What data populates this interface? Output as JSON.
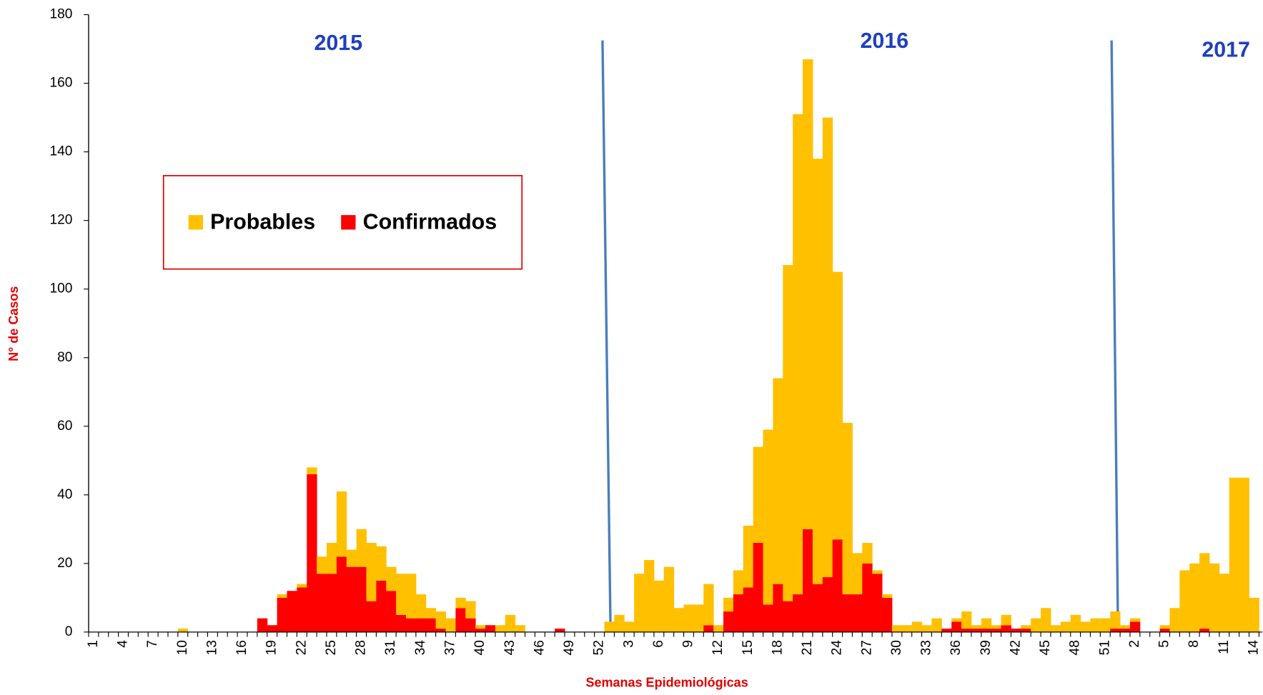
{
  "chart_data": {
    "type": "stacked-bar",
    "x_label": "Semanas Epidemiológicas",
    "y_label": "N° de Casos",
    "annotations": [
      "2015",
      "2016",
      "2017"
    ],
    "categories": [
      "1",
      null,
      null,
      "4",
      null,
      null,
      "7",
      null,
      null,
      "10",
      null,
      null,
      "13",
      null,
      null,
      "16",
      null,
      null,
      "19",
      null,
      null,
      "22",
      null,
      null,
      "25",
      null,
      null,
      "28",
      null,
      null,
      "31",
      null,
      null,
      "34",
      null,
      null,
      "37",
      null,
      null,
      "40",
      null,
      null,
      "43",
      null,
      null,
      "46",
      null,
      null,
      "49",
      null,
      null,
      "52",
      null,
      null,
      "3",
      null,
      null,
      "6",
      null,
      null,
      "9",
      null,
      null,
      "12",
      null,
      null,
      "15",
      null,
      null,
      "18",
      null,
      null,
      "21",
      null,
      null,
      "24",
      null,
      null,
      "27",
      null,
      null,
      "30",
      null,
      null,
      "33",
      null,
      null,
      "36",
      null,
      null,
      "39",
      null,
      null,
      "42",
      null,
      null,
      "45",
      null,
      null,
      "48",
      null,
      null,
      "51",
      null,
      null,
      "2",
      null,
      null,
      "5",
      null,
      null,
      "8",
      null,
      null,
      "11",
      null,
      null,
      "14"
    ],
    "series": [
      {
        "name": "Probables",
        "color": "#ffc000",
        "values": [
          0,
          0,
          0,
          0,
          0,
          0,
          0,
          0,
          0,
          1,
          0,
          0,
          0,
          0,
          0,
          0,
          0,
          0,
          0,
          1,
          0,
          1,
          2,
          5,
          9,
          19,
          5,
          11,
          17,
          10,
          7,
          12,
          13,
          7,
          3,
          5,
          4,
          3,
          5,
          1,
          0,
          2,
          5,
          2,
          0,
          0,
          0,
          0,
          0,
          0,
          0,
          0,
          3,
          5,
          3,
          17,
          21,
          15,
          19,
          7,
          8,
          8,
          12,
          2,
          4,
          7,
          18,
          28,
          51,
          60,
          98,
          140,
          137,
          124,
          134,
          78,
          50,
          12,
          6,
          1,
          1,
          2,
          2,
          3,
          2,
          4,
          0,
          1,
          5,
          1,
          3,
          1,
          3,
          0,
          1,
          4,
          7,
          2,
          3,
          5,
          3,
          4,
          4,
          5,
          1,
          1,
          0,
          0,
          1,
          7,
          18,
          20,
          22,
          20,
          17,
          45,
          45,
          10
        ]
      },
      {
        "name": "Confirmados",
        "color": "#ff0000",
        "values": [
          0,
          0,
          0,
          0,
          0,
          0,
          0,
          0,
          0,
          0,
          0,
          0,
          0,
          0,
          0,
          0,
          0,
          4,
          2,
          10,
          12,
          13,
          46,
          17,
          17,
          22,
          19,
          19,
          9,
          15,
          12,
          5,
          4,
          4,
          4,
          1,
          0,
          7,
          4,
          1,
          2,
          0,
          0,
          0,
          0,
          0,
          0,
          1,
          0,
          0,
          0,
          0,
          0,
          0,
          0,
          0,
          0,
          0,
          0,
          0,
          0,
          0,
          2,
          0,
          6,
          11,
          13,
          26,
          8,
          14,
          9,
          11,
          30,
          14,
          16,
          27,
          11,
          11,
          20,
          17,
          10,
          0,
          0,
          0,
          0,
          0,
          1,
          3,
          1,
          1,
          1,
          1,
          2,
          1,
          1,
          0,
          0,
          0,
          0,
          0,
          0,
          0,
          0,
          1,
          1,
          3,
          0,
          0,
          1,
          0,
          0,
          0,
          1,
          0,
          0,
          0,
          0,
          0
        ]
      }
    ],
    "ylim": [
      0,
      180
    ],
    "yticks": [
      0,
      20,
      40,
      60,
      80,
      100,
      120,
      140,
      160,
      180
    ],
    "grid": false,
    "legend": "upper left"
  }
}
